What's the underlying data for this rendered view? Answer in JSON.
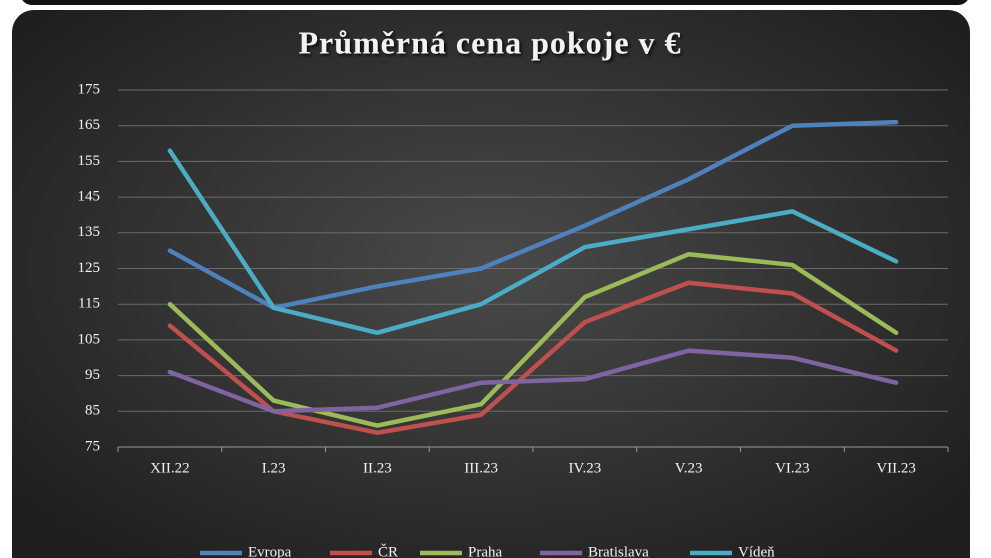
{
  "chart_data": {
    "type": "line",
    "title": "Průměrná cena pokoje v €",
    "categories": [
      "XII.22",
      "I.23",
      "II.23",
      "III.23",
      "IV.23",
      "V.23",
      "VI.23",
      "VII.23"
    ],
    "series": [
      {
        "name": "Evropa",
        "color": "#4f81bd",
        "values": [
          130,
          114,
          120,
          125,
          137,
          150,
          165,
          166
        ]
      },
      {
        "name": "ČR",
        "color": "#c0504d",
        "values": [
          109,
          85,
          79,
          84,
          110,
          121,
          118,
          102
        ]
      },
      {
        "name": "Praha",
        "color": "#9bbb59",
        "values": [
          115,
          88,
          81,
          87,
          117,
          129,
          126,
          107
        ]
      },
      {
        "name": "Bratislava",
        "color": "#8064a2",
        "values": [
          96,
          85,
          86,
          93,
          94,
          102,
          100,
          93
        ]
      },
      {
        "name": "Vídeň",
        "color": "#4bacc6",
        "values": [
          158,
          114,
          107,
          115,
          131,
          136,
          141,
          127
        ]
      }
    ],
    "ylim": [
      75,
      175
    ],
    "yticks": [
      75,
      85,
      95,
      105,
      115,
      125,
      135,
      145,
      155,
      165,
      175
    ],
    "grid": true,
    "legend": "bottom"
  }
}
